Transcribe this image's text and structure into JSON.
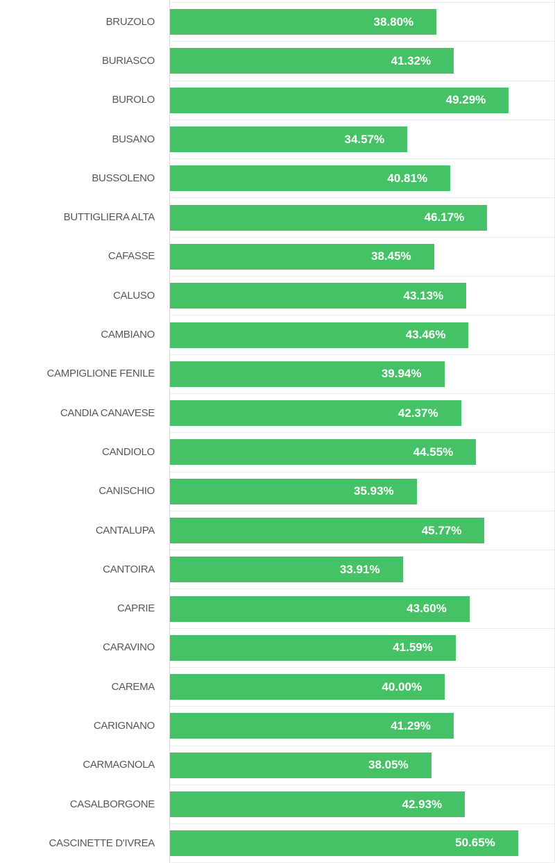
{
  "chart_data": {
    "type": "bar",
    "orientation": "horizontal",
    "title": "",
    "xlabel": "",
    "ylabel": "",
    "xlim": [
      0,
      55
    ],
    "grid": true,
    "bar_color": "#45c265",
    "grid_color": "#ececec",
    "axis_color": "#d8d8d8",
    "category_color": "#55585b",
    "value_color": "#ffffff",
    "value_format": "percent_2dp_inside_end",
    "rows": [
      {
        "name": "BRUZOLO",
        "value": 38.8,
        "label": "38.80%"
      },
      {
        "name": "BURIASCO",
        "value": 41.32,
        "label": "41.32%"
      },
      {
        "name": "BUROLO",
        "value": 49.29,
        "label": "49.29%"
      },
      {
        "name": "BUSANO",
        "value": 34.57,
        "label": "34.57%"
      },
      {
        "name": "BUSSOLENO",
        "value": 40.81,
        "label": "40.81%"
      },
      {
        "name": "BUTTIGLIERA ALTA",
        "value": 46.17,
        "label": "46.17%"
      },
      {
        "name": "CAFASSE",
        "value": 38.45,
        "label": "38.45%"
      },
      {
        "name": "CALUSO",
        "value": 43.13,
        "label": "43.13%"
      },
      {
        "name": "CAMBIANO",
        "value": 43.46,
        "label": "43.46%"
      },
      {
        "name": "CAMPIGLIONE FENILE",
        "value": 39.94,
        "label": "39.94%"
      },
      {
        "name": "CANDIA CANAVESE",
        "value": 42.37,
        "label": "42.37%"
      },
      {
        "name": "CANDIOLO",
        "value": 44.55,
        "label": "44.55%"
      },
      {
        "name": "CANISCHIO",
        "value": 35.93,
        "label": "35.93%"
      },
      {
        "name": "CANTALUPA",
        "value": 45.77,
        "label": "45.77%"
      },
      {
        "name": "CANTOIRA",
        "value": 33.91,
        "label": "33.91%"
      },
      {
        "name": "CAPRIE",
        "value": 43.6,
        "label": "43.60%"
      },
      {
        "name": "CARAVINO",
        "value": 41.59,
        "label": "41.59%"
      },
      {
        "name": "CAREMA",
        "value": 40.0,
        "label": "40.00%"
      },
      {
        "name": "CARIGNANO",
        "value": 41.29,
        "label": "41.29%"
      },
      {
        "name": "CARMAGNOLA",
        "value": 38.05,
        "label": "38.05%"
      },
      {
        "name": "CASALBORGONE",
        "value": 42.93,
        "label": "42.93%"
      },
      {
        "name": "CASCINETTE D'IVREA",
        "value": 50.65,
        "label": "50.65%"
      }
    ]
  }
}
